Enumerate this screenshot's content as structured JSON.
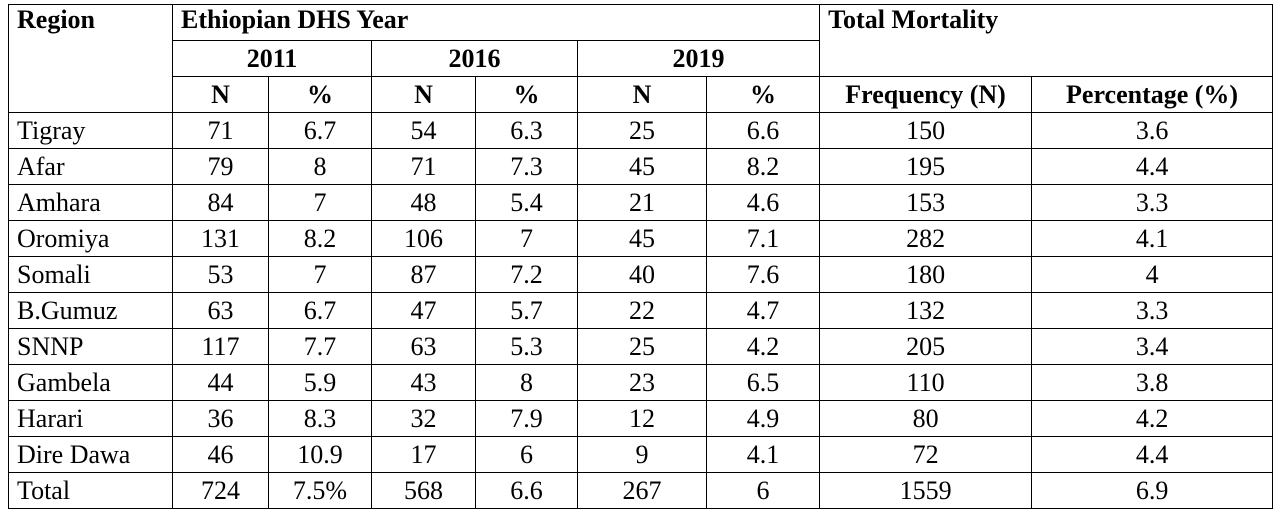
{
  "table": {
    "header": {
      "region": "Region",
      "group": "Ethiopian DHS Year",
      "total": "Total Mortality",
      "years": [
        "2011",
        "2016",
        "2019"
      ],
      "subheaders": [
        "N",
        "%",
        "N",
        "%",
        "N",
        "%",
        "Frequency (N)",
        "Percentage (%)"
      ]
    },
    "rows": [
      [
        "Tigray",
        "71",
        "6.7",
        "54",
        "6.3",
        "25",
        "6.6",
        "150",
        "3.6"
      ],
      [
        "Afar",
        "79",
        "8",
        "71",
        "7.3",
        "45",
        "8.2",
        "195",
        "4.4"
      ],
      [
        "Amhara",
        "84",
        "7",
        "48",
        "5.4",
        "21",
        "4.6",
        "153",
        "3.3"
      ],
      [
        "Oromiya",
        "131",
        "8.2",
        "106",
        "7",
        "45",
        "7.1",
        "282",
        "4.1"
      ],
      [
        "Somali",
        "53",
        "7",
        "87",
        "7.2",
        "40",
        "7.6",
        "180",
        "4"
      ],
      [
        "B.Gumuz",
        "63",
        "6.7",
        "47",
        "5.7",
        "22",
        "4.7",
        "132",
        "3.3"
      ],
      [
        "SNNP",
        "117",
        "7.7",
        "63",
        "5.3",
        "25",
        "4.2",
        "205",
        "3.4"
      ],
      [
        "Gambela",
        "44",
        "5.9",
        "43",
        "8",
        "23",
        "6.5",
        "110",
        "3.8"
      ],
      [
        "Harari",
        "36",
        "8.3",
        "32",
        "7.9",
        "12",
        "4.9",
        "80",
        "4.2"
      ],
      [
        "Dire Dawa",
        "46",
        "10.9",
        "17",
        "6",
        "9",
        "4.1",
        "72",
        "4.4"
      ],
      [
        "Total",
        "724",
        "7.5%",
        "568",
        "6.6",
        "267",
        "6",
        "1559",
        "6.9"
      ]
    ]
  }
}
